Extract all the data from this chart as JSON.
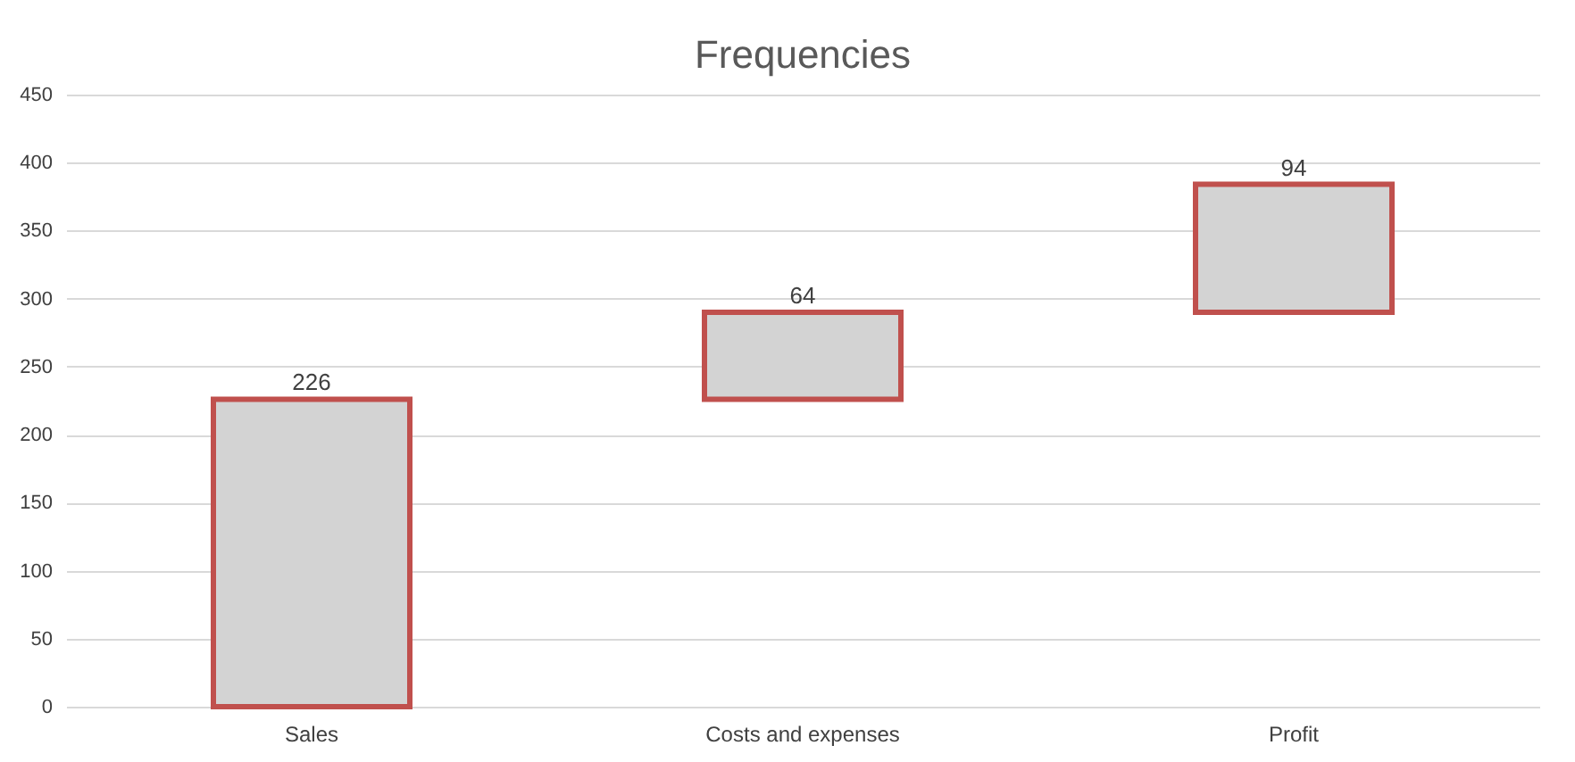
{
  "chart_data": {
    "type": "bar",
    "title": "Frequencies",
    "categories": [
      "Sales",
      "Costs and expenses",
      "Profit"
    ],
    "values": [
      226,
      64,
      94
    ],
    "base": [
      0,
      226,
      290
    ],
    "colors": [
      "#d3d3d3",
      "#d3d3d3",
      "#d3d3d3"
    ],
    "ylim": [
      0,
      450
    ],
    "yticks": [
      0,
      50,
      100,
      150,
      200,
      250,
      300,
      350,
      400,
      450
    ],
    "grid": "y",
    "data_labels": true
  }
}
